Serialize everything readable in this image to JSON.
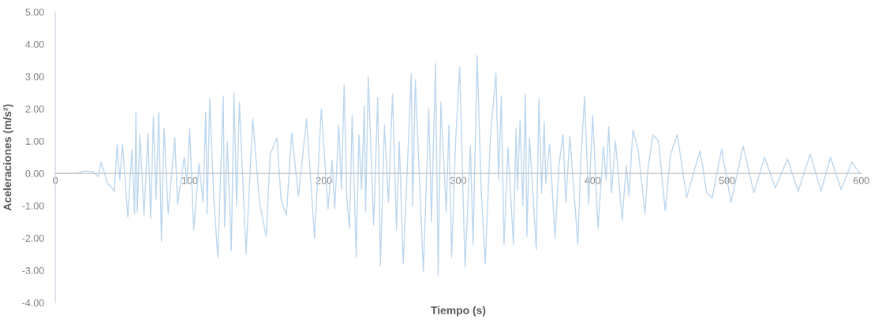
{
  "chart_data": {
    "type": "line",
    "xlabel": "Tiempo (s)",
    "ylabel": "Aceleraciones (m/s²)",
    "xlim": [
      0,
      600
    ],
    "xticks": [
      0,
      100,
      200,
      300,
      400,
      500,
      600
    ],
    "ylim": [
      -4,
      5
    ],
    "yticks": [
      {
        "value": 5,
        "label": "5.00"
      },
      {
        "value": 4,
        "label": "4.00"
      },
      {
        "value": 3,
        "label": "3.00"
      },
      {
        "value": 2,
        "label": "2.00"
      },
      {
        "value": 1,
        "label": "1.00"
      },
      {
        "value": 0,
        "label": "0.00"
      },
      {
        "value": -1,
        "label": "-1.00"
      },
      {
        "value": -2,
        "label": "-2.00"
      },
      {
        "value": -3,
        "label": "-3.00"
      },
      {
        "value": -4,
        "label": "-4.00"
      }
    ],
    "grid": false,
    "marker": "none",
    "line_style": "solid",
    "x": [
      0,
      16,
      22,
      28,
      32,
      34,
      39,
      44,
      46,
      48,
      50,
      54,
      57,
      59,
      60,
      61,
      63,
      66,
      69,
      71,
      73,
      75,
      77,
      79,
      81,
      84,
      89,
      91,
      96,
      98,
      100,
      103,
      107,
      110,
      112,
      113,
      115,
      118,
      121,
      125,
      126,
      128,
      131,
      133,
      135,
      137,
      142,
      147,
      152,
      157,
      160,
      165,
      168,
      172,
      176,
      181,
      187,
      193,
      198,
      203,
      206,
      208,
      211,
      213,
      215,
      217,
      219,
      221,
      224,
      226,
      228,
      230,
      231,
      233,
      237,
      240,
      242,
      245,
      248,
      251,
      254,
      256,
      259,
      265,
      266,
      268,
      274,
      278,
      280,
      283,
      285,
      287,
      291,
      293,
      295,
      298,
      301,
      305,
      309,
      311,
      314,
      317,
      320,
      324,
      328,
      330,
      332,
      334,
      337,
      341,
      343,
      344,
      346,
      348,
      350,
      351,
      353,
      358,
      360,
      362,
      364,
      365,
      368,
      372,
      375,
      378,
      380,
      383,
      386,
      389,
      391,
      394,
      397,
      400,
      404,
      408,
      410,
      412,
      414,
      417,
      422,
      425,
      427,
      430,
      434,
      439,
      441,
      445,
      449,
      454,
      458,
      463,
      470,
      475,
      480,
      485,
      489,
      496,
      503,
      512,
      520,
      528,
      536,
      545,
      553,
      562,
      570,
      577,
      585,
      593,
      599
    ],
    "series": [
      {
        "color": "#bdd7ee",
        "values": [
          0,
          0,
          0.08,
          0.05,
          -0.1,
          0.35,
          -0.3,
          -0.55,
          0.9,
          -0.2,
          0.9,
          -1.35,
          0.75,
          -1.25,
          1.9,
          -1.2,
          1.2,
          -1.3,
          1.25,
          -1.4,
          1.75,
          -0.8,
          1.9,
          -2.1,
          1.4,
          -1.25,
          1.1,
          -0.95,
          0.5,
          -0.3,
          1.4,
          -1.75,
          0.3,
          -0.9,
          1.9,
          -1.25,
          2.3,
          -0.8,
          -2.6,
          2.4,
          -1.65,
          1.0,
          -2.4,
          2.5,
          -1.0,
          2.2,
          -2.5,
          1.7,
          -0.9,
          -1.95,
          0.6,
          1.1,
          -0.8,
          -1.3,
          1.25,
          -0.7,
          1.7,
          -2.0,
          2.0,
          -1.1,
          0.4,
          -1.1,
          1.5,
          -0.5,
          2.75,
          -0.8,
          -1.7,
          1.8,
          -2.6,
          1.2,
          -0.5,
          2.1,
          -1.2,
          3.0,
          -1.6,
          2.35,
          -2.85,
          1.5,
          -0.9,
          2.45,
          -1.75,
          1.0,
          -2.8,
          3.1,
          -1.0,
          2.9,
          -3.05,
          2.0,
          -1.5,
          3.4,
          -3.15,
          2.2,
          -1.2,
          1.5,
          -2.6,
          1.0,
          3.3,
          -2.9,
          0.85,
          -2.2,
          3.65,
          -0.5,
          -2.8,
          1.2,
          3.1,
          -0.2,
          2.4,
          -2.2,
          0.8,
          -2.2,
          1.4,
          -0.5,
          1.65,
          -1.0,
          2.45,
          -1.95,
          1.1,
          -2.35,
          2.3,
          -0.6,
          1.6,
          -0.3,
          0.9,
          -2.0,
          0.3,
          1.2,
          -0.9,
          1.15,
          -0.5,
          -2.2,
          0.25,
          2.4,
          -0.95,
          1.8,
          -1.7,
          0.85,
          -0.2,
          1.45,
          -0.6,
          1.0,
          -1.45,
          0.25,
          -0.7,
          1.35,
          0.7,
          -1.25,
          0.1,
          1.2,
          1.0,
          -1.15,
          0.6,
          1.2,
          -0.75,
          0.0,
          0.7,
          -0.6,
          -0.75,
          0.75,
          -0.9,
          0.85,
          -0.6,
          0.5,
          -0.45,
          0.45,
          -0.55,
          0.6,
          -0.55,
          0.5,
          -0.5,
          0.35,
          0
        ]
      }
    ]
  }
}
